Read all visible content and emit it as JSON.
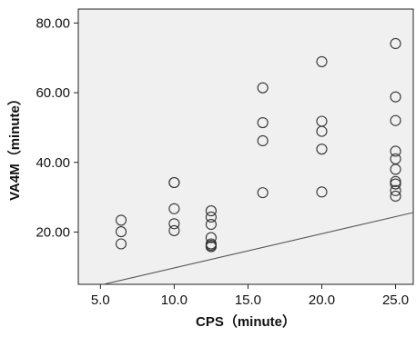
{
  "chart_data": {
    "type": "scatter",
    "xlabel": "CPS（minute）",
    "ylabel": "VA4M（minute）",
    "xlim": [
      3.5,
      26.2
    ],
    "ylim": [
      5.0,
      84.0
    ],
    "x_ticks": [
      "5.0",
      "10.0",
      "15.0",
      "20.0",
      "25.0"
    ],
    "x_tick_values": [
      5,
      10,
      15,
      20,
      25
    ],
    "y_ticks": [
      "20.00",
      "40.00",
      "60.00",
      "80.00"
    ],
    "y_tick_values": [
      20,
      40,
      60,
      80
    ],
    "grid": false,
    "series": [
      {
        "marker": "open-circle",
        "points": [
          [
            6.4,
            23.4
          ],
          [
            6.4,
            20.1
          ],
          [
            6.4,
            16.6
          ],
          [
            10.0,
            34.2
          ],
          [
            10.0,
            34.2
          ],
          [
            10.0,
            26.7
          ],
          [
            10.0,
            22.4
          ],
          [
            10.0,
            20.4
          ],
          [
            12.5,
            26.1
          ],
          [
            12.5,
            24.3
          ],
          [
            12.5,
            22.2
          ],
          [
            12.5,
            18.4
          ],
          [
            12.5,
            16.6
          ],
          [
            12.5,
            16.2
          ],
          [
            12.5,
            15.8
          ],
          [
            16.0,
            61.4
          ],
          [
            16.0,
            51.4
          ],
          [
            16.0,
            46.2
          ],
          [
            16.0,
            31.3
          ],
          [
            20.0,
            68.9
          ],
          [
            20.0,
            51.8
          ],
          [
            20.0,
            48.9
          ],
          [
            20.0,
            43.8
          ],
          [
            20.0,
            31.5
          ],
          [
            25.0,
            74.1
          ],
          [
            25.0,
            58.8
          ],
          [
            25.0,
            52.0
          ],
          [
            25.0,
            43.2
          ],
          [
            25.0,
            41.0
          ],
          [
            25.0,
            38.0
          ],
          [
            25.0,
            34.5
          ],
          [
            25.0,
            33.8
          ],
          [
            25.0,
            31.9
          ],
          [
            25.0,
            30.3
          ]
        ]
      }
    ],
    "reference_line": {
      "from": [
        5.2,
        5.0
      ],
      "to": [
        26.2,
        25.6
      ]
    },
    "colors": {
      "plot_background": "#f0f0f0",
      "marker": "#333333",
      "line": "#555555"
    }
  }
}
